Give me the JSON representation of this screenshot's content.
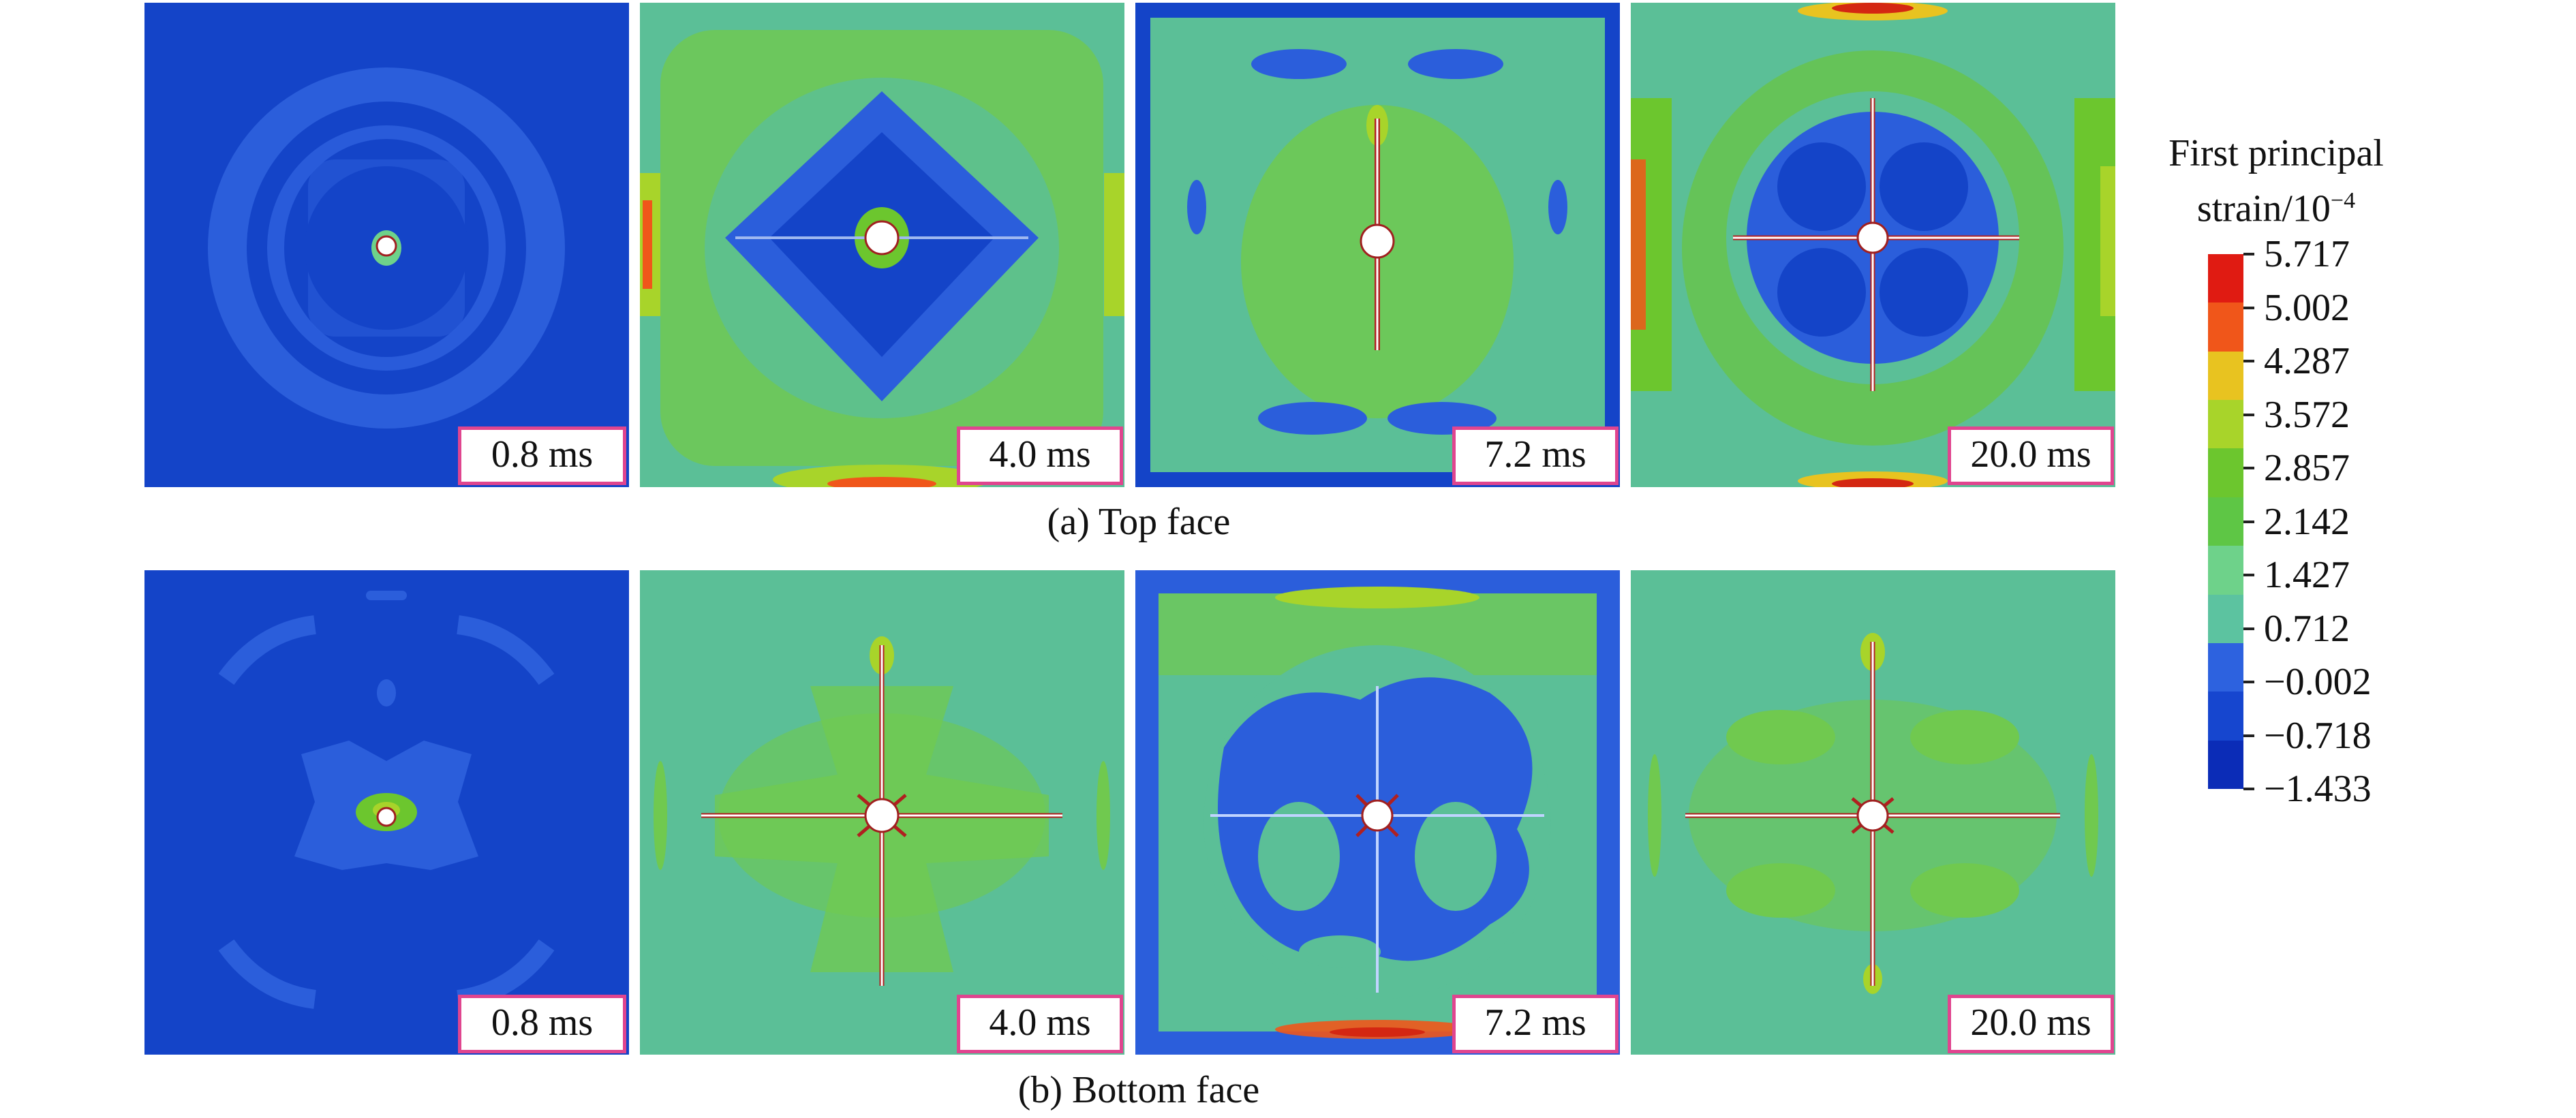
{
  "captions": {
    "top": "(a) Top face",
    "bottom": "(b) Bottom face"
  },
  "times": [
    "0.8 ms",
    "4.0 ms",
    "7.2 ms",
    "20.0 ms"
  ],
  "legend": {
    "title_line1": "First principal",
    "title_line2": "strain/10",
    "title_sup": "−4",
    "levels": [
      "5.717",
      "5.002",
      "4.287",
      "3.572",
      "2.857",
      "2.142",
      "1.427",
      "0.712",
      "−0.002",
      "−0.718",
      "−1.433"
    ],
    "colors": [
      "#e01b12",
      "#f0561a",
      "#e8c320",
      "#a8d42a",
      "#6cc62e",
      "#5ec645",
      "#6ed28a",
      "#5cc3a0",
      "#2d62df",
      "#1646cf",
      "#0b2cb7"
    ]
  },
  "colors": {
    "label_border": "#e0458f",
    "deep_blue": "#1444c8",
    "mid_blue": "#2b5edb",
    "teal": "#5bbf97",
    "green": "#70c94f",
    "yellow_green": "#a8d42a",
    "orange": "#f0561a",
    "red": "#d42712"
  }
}
